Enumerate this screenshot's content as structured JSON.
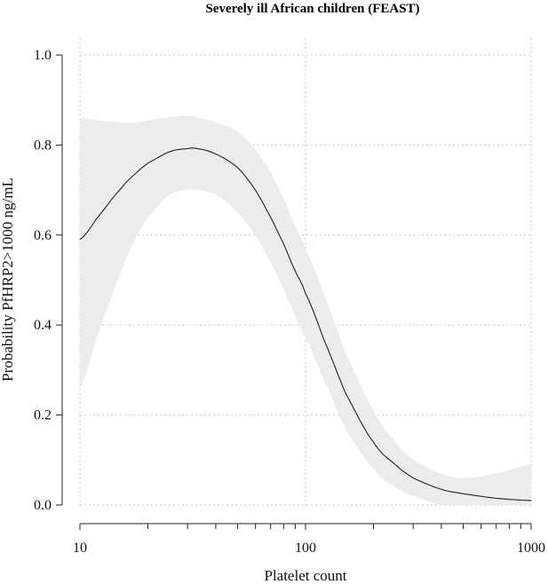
{
  "chart_data": {
    "type": "line",
    "title": "Severely ill African children (FEAST)",
    "xlabel": "Platelet count",
    "ylabel": "Probability PfHRP2>1000 ng/mL",
    "x_scale": "log",
    "xlim": [
      10,
      1000
    ],
    "ylim": [
      0,
      1
    ],
    "grid": true,
    "x_major_ticks": [
      10,
      100,
      1000
    ],
    "x_major_tick_labels": [
      "10",
      "100",
      "1000"
    ],
    "x_minor_ticks": [
      20,
      30,
      40,
      50,
      60,
      70,
      80,
      90,
      200,
      300,
      400,
      500,
      600,
      700,
      800,
      900
    ],
    "y_ticks": [
      0.0,
      0.2,
      0.4,
      0.6,
      0.8,
      1.0
    ],
    "y_tick_labels": [
      "0.0",
      "0.2",
      "0.4",
      "0.6",
      "0.8",
      "1.0"
    ],
    "colors": {
      "band": "#ececec",
      "line": "#222222",
      "grid": "#c9c9c9"
    },
    "series": [
      {
        "x": [
          10,
          12,
          15,
          18,
          20,
          25,
          30,
          33,
          40,
          50,
          60,
          70,
          80,
          90,
          100,
          120,
          150,
          200,
          250,
          300,
          400,
          500,
          700,
          1000
        ],
        "y": [
          0.59,
          0.64,
          0.7,
          0.74,
          0.76,
          0.785,
          0.792,
          0.792,
          0.78,
          0.75,
          0.7,
          0.64,
          0.58,
          0.52,
          0.47,
          0.37,
          0.25,
          0.14,
          0.09,
          0.06,
          0.035,
          0.025,
          0.015,
          0.01
        ],
        "lower": [
          0.26,
          0.38,
          0.51,
          0.6,
          0.64,
          0.69,
          0.7,
          0.7,
          0.69,
          0.65,
          0.6,
          0.54,
          0.48,
          0.42,
          0.37,
          0.28,
          0.17,
          0.08,
          0.04,
          0.02,
          0.0,
          0.0,
          0.0,
          0.0
        ],
        "upper": [
          0.86,
          0.855,
          0.85,
          0.85,
          0.855,
          0.862,
          0.865,
          0.862,
          0.85,
          0.83,
          0.79,
          0.74,
          0.68,
          0.62,
          0.57,
          0.47,
          0.34,
          0.21,
          0.14,
          0.1,
          0.07,
          0.06,
          0.07,
          0.09
        ]
      }
    ]
  }
}
